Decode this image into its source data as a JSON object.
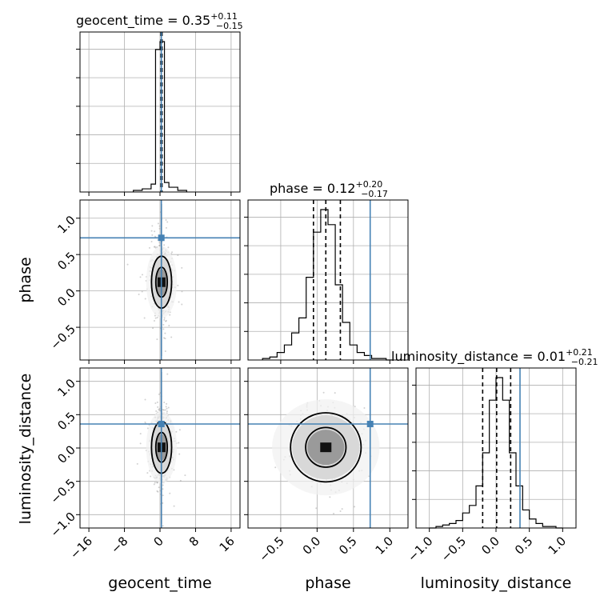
{
  "chart_data": {
    "type": "corner",
    "parameters": [
      "geocent_time",
      "phase",
      "luminosity_distance"
    ],
    "grid": true,
    "titles": [
      {
        "param": "geocent_time",
        "text": "geocent_time = 0.35",
        "sup": "+0.11",
        "sub": "−0.15",
        "median": 0.35,
        "plus": 0.11,
        "minus": 0.15
      },
      {
        "param": "phase",
        "text": "phase = 0.12",
        "sup": "+0.20",
        "sub": "−0.17",
        "median": 0.12,
        "plus": 0.2,
        "minus": 0.17
      },
      {
        "param": "luminosity_distance",
        "text": "luminosity_distance = 0.01",
        "sup": "+0.21",
        "sub": "−0.21",
        "median": 0.01,
        "plus": 0.21,
        "minus": 0.21
      }
    ],
    "truths": {
      "geocent_time": 0.3,
      "phase": 0.73,
      "luminosity_distance": 0.36
    },
    "ranges": {
      "geocent_time": [
        -18,
        18
      ],
      "phase": [
        -0.95,
        1.25
      ],
      "luminosity_distance": [
        -1.2,
        1.2
      ]
    },
    "ticks": {
      "geocent_time": [
        -16,
        -8,
        0,
        8,
        16
      ],
      "geocent_time_labels": [
        "−16",
        "−8",
        "0",
        "8",
        "16"
      ],
      "phase": [
        -0.5,
        0.0,
        0.5,
        1.0
      ],
      "phase_labels": [
        "−0.5",
        "0.0",
        "0.5",
        "1.0"
      ],
      "luminosity_distance": [
        -1.0,
        -0.5,
        0.0,
        0.5,
        1.0
      ],
      "luminosity_distance_labels": [
        "−1.0",
        "−0.5",
        "0.0",
        "0.5",
        "1.0"
      ]
    },
    "histograms": {
      "geocent_time": {
        "bin_edges": [
          -6,
          -4,
          -2,
          -1,
          0,
          1,
          2,
          4,
          6
        ],
        "counts": [
          0.01,
          0.02,
          0.05,
          0.9,
          0.95,
          0.06,
          0.03,
          0.01
        ]
      },
      "phase": {
        "bin_edges": [
          -0.75,
          -0.65,
          -0.55,
          -0.45,
          -0.35,
          -0.25,
          -0.15,
          -0.05,
          0.05,
          0.15,
          0.25,
          0.35,
          0.45,
          0.55,
          0.65,
          0.75,
          0.85,
          0.95,
          1.05
        ],
        "counts": [
          0.01,
          0.02,
          0.05,
          0.1,
          0.18,
          0.28,
          0.55,
          0.85,
          1.0,
          0.9,
          0.5,
          0.25,
          0.1,
          0.05,
          0.03,
          0.01,
          0.01,
          0.0
        ]
      },
      "luminosity_distance": {
        "bin_edges": [
          -1.0,
          -0.9,
          -0.8,
          -0.7,
          -0.6,
          -0.5,
          -0.4,
          -0.3,
          -0.2,
          -0.1,
          0.0,
          0.1,
          0.2,
          0.3,
          0.4,
          0.5,
          0.6,
          0.7,
          0.8,
          0.9,
          1.0
        ],
        "counts": [
          0.0,
          0.01,
          0.02,
          0.03,
          0.05,
          0.1,
          0.15,
          0.28,
          0.5,
          0.85,
          1.0,
          0.85,
          0.5,
          0.28,
          0.12,
          0.06,
          0.03,
          0.01,
          0.01,
          0.0
        ]
      }
    },
    "axis_labels": {
      "geocent_time": "geocent_time",
      "phase": "phase",
      "luminosity_distance": "luminosity_distance"
    }
  }
}
